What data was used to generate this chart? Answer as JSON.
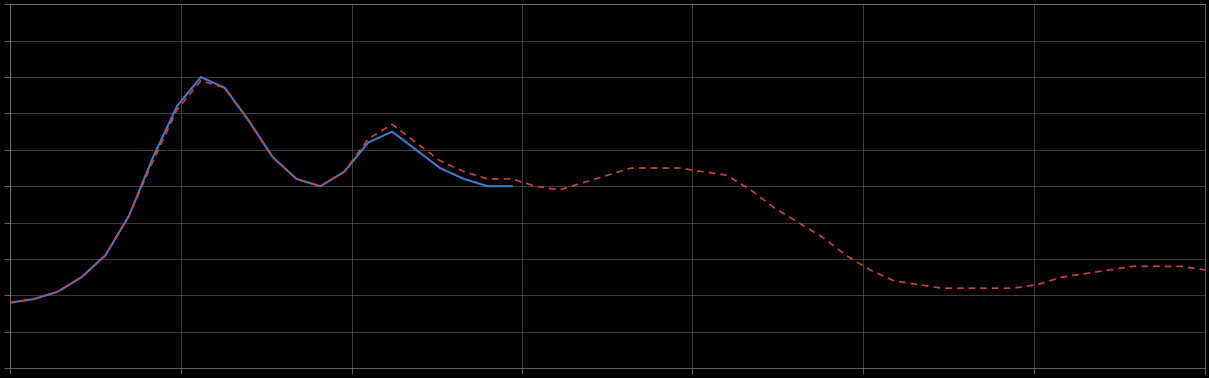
{
  "background_color": "#000000",
  "plot_bg_color": "#000000",
  "grid_color": "#555555",
  "blue_color": "#4477cc",
  "red_color": "#cc4433",
  "figsize": [
    12.09,
    3.78
  ],
  "dpi": 100,
  "xlim": [
    0,
    100
  ],
  "ylim": [
    0,
    100
  ],
  "x_ticks": [
    0,
    14.3,
    28.6,
    42.9,
    57.1,
    71.4,
    85.7,
    100
  ],
  "y_ticks": [
    0,
    10,
    20,
    30,
    40,
    50,
    60,
    70,
    80,
    90,
    100
  ],
  "blue_x": [
    0,
    2,
    4,
    6,
    8,
    10,
    12,
    14,
    16,
    18,
    20,
    22,
    24,
    26,
    28,
    30,
    32,
    34,
    36,
    38,
    40,
    42
  ],
  "blue_y": [
    18,
    19,
    21,
    25,
    31,
    42,
    58,
    72,
    80,
    77,
    68,
    58,
    52,
    50,
    54,
    62,
    65,
    60,
    55,
    52,
    50,
    50
  ],
  "red_x": [
    0,
    2,
    4,
    6,
    8,
    10,
    12,
    14,
    16,
    18,
    20,
    22,
    24,
    26,
    28,
    30,
    32,
    34,
    36,
    38,
    40,
    42,
    44,
    46,
    48,
    50,
    52,
    54,
    56,
    58,
    60,
    62,
    64,
    66,
    68,
    70,
    72,
    74,
    76,
    78,
    80,
    82,
    84,
    86,
    88,
    90,
    92,
    94,
    96,
    98,
    100
  ],
  "red_y": [
    18,
    19,
    21,
    25,
    31,
    42,
    57,
    71,
    79,
    77,
    68,
    58,
    52,
    50,
    54,
    63,
    67,
    62,
    57,
    54,
    52,
    52,
    50,
    49,
    51,
    53,
    55,
    55,
    55,
    54,
    53,
    49,
    44,
    40,
    36,
    31,
    27,
    24,
    23,
    22,
    22,
    22,
    22,
    23,
    25,
    26,
    27,
    28,
    28,
    28,
    27
  ]
}
